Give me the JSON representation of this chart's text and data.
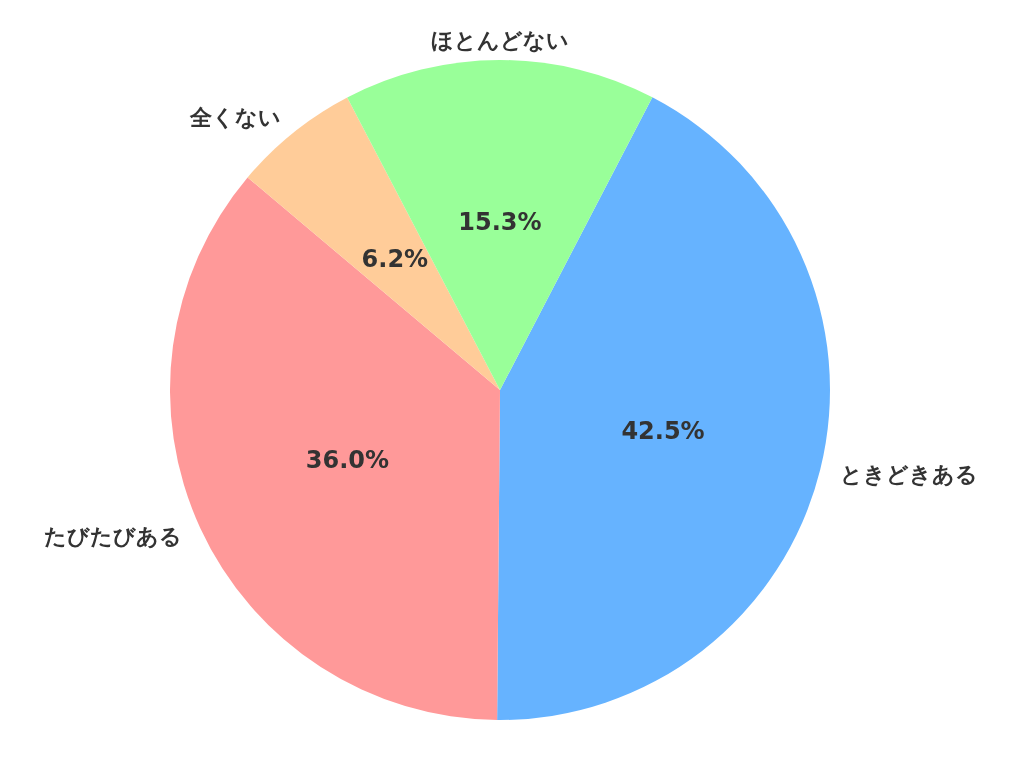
{
  "chart_data": {
    "type": "pie",
    "categories": [
      "ときどきある",
      "たびたびある",
      "全くない",
      "ほとんどない"
    ],
    "values": [
      42.5,
      36.0,
      6.2,
      15.3
    ],
    "colors": [
      "#66b3ff",
      "#ff9999",
      "#ffcc99",
      "#99ff99"
    ],
    "value_labels": [
      "42.5%",
      "36.0%",
      "6.2%",
      "15.3%"
    ]
  }
}
